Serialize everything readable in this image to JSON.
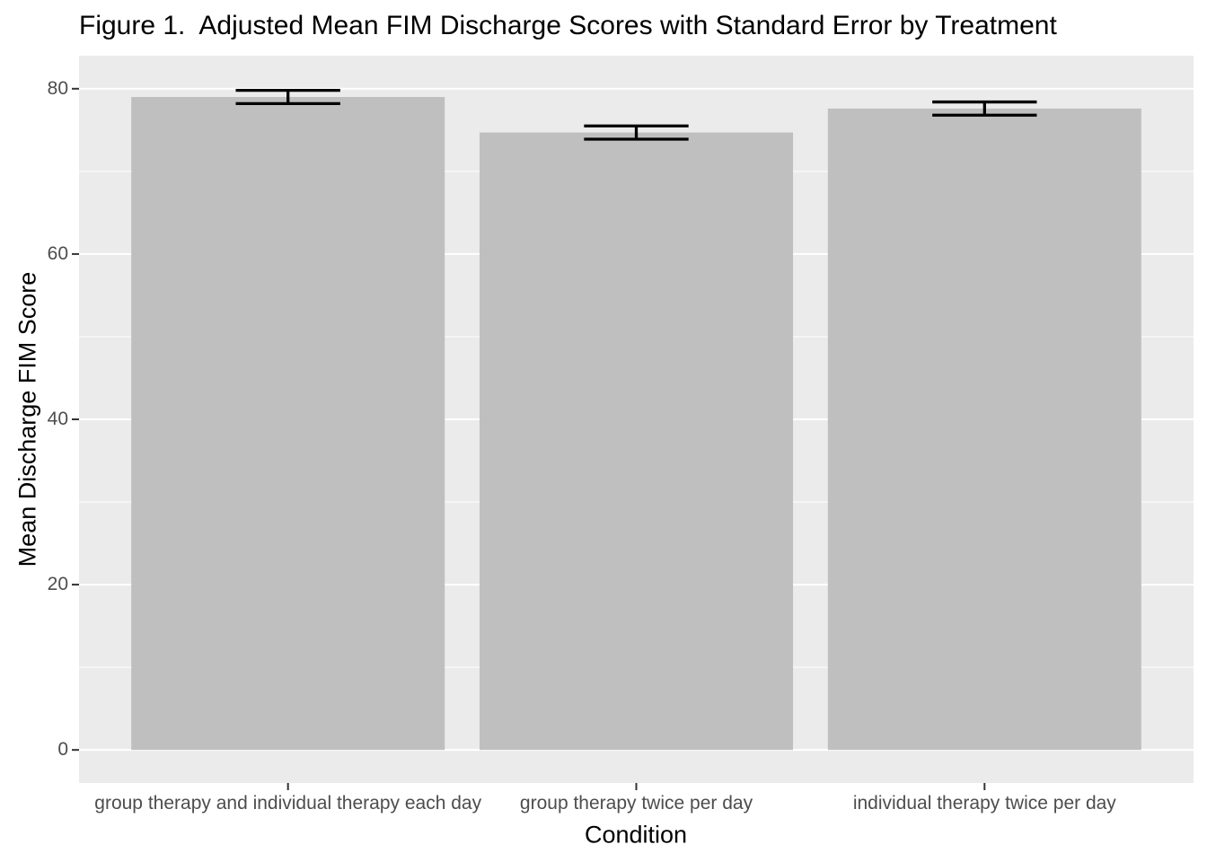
{
  "chart_data": {
    "type": "bar",
    "title": "Figure 1.  Adjusted Mean FIM Discharge Scores with Standard Error by Treatment",
    "xlabel": "Condition",
    "ylabel": "Mean Discharge FIM Score",
    "categories": [
      "group therapy and individual therapy each day",
      "group therapy twice per day",
      "individual therapy twice per day"
    ],
    "values": [
      79.0,
      74.7,
      77.6
    ],
    "standard_errors": [
      0.8,
      0.8,
      0.8
    ],
    "yticks": [
      0,
      20,
      40,
      60,
      80
    ],
    "minor_gridlines": [
      10,
      30,
      50,
      70
    ],
    "ylim": [
      -4,
      84
    ],
    "grid": "on",
    "legend": "none",
    "colors": {
      "panel_bg": "#EBEBEB",
      "bar_fill": "#BFBFBF",
      "grid": "#FFFFFF",
      "tick_mark": "#333333",
      "tick_label": "#4D4D4D",
      "axis_title": "#000000",
      "error_bar": "#000000",
      "title": "#000000",
      "background": "#FFFFFF"
    }
  }
}
